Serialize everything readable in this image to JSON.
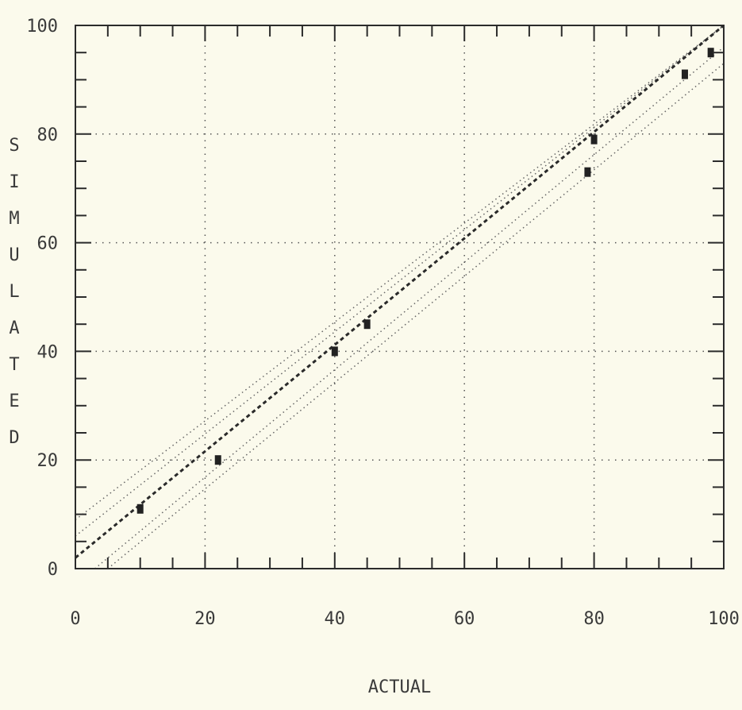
{
  "chart_data": {
    "type": "scatter",
    "title": "",
    "xlabel": "ACTUAL",
    "ylabel": "SIMULATED",
    "xlim": [
      0,
      100
    ],
    "ylim": [
      0,
      100
    ],
    "x_ticks": [
      "0",
      "20",
      "40",
      "60",
      "80",
      "100"
    ],
    "y_ticks": [
      "0",
      "20",
      "40",
      "60",
      "80",
      "100"
    ],
    "grid": "dotted, major ticks only",
    "series": [
      {
        "kind": "points",
        "points": [
          [
            10,
            11
          ],
          [
            22,
            20
          ],
          [
            40,
            40
          ],
          [
            45,
            45
          ],
          [
            79,
            73
          ],
          [
            80,
            79
          ],
          [
            94,
            91
          ],
          [
            98,
            95
          ]
        ]
      },
      {
        "kind": "fit-line",
        "points": [
          [
            0,
            2
          ],
          [
            100,
            100
          ]
        ]
      },
      {
        "kind": "inner-band-upper",
        "points": [
          [
            0,
            6
          ],
          [
            100,
            100
          ]
        ]
      },
      {
        "kind": "inner-band-lower",
        "points": [
          [
            3,
            0
          ],
          [
            100,
            96
          ]
        ]
      },
      {
        "kind": "outer-band-upper",
        "points": [
          [
            0,
            9
          ],
          [
            100,
            103
          ]
        ]
      },
      {
        "kind": "outer-band-lower",
        "points": [
          [
            5,
            0
          ],
          [
            100,
            93
          ]
        ]
      }
    ]
  }
}
